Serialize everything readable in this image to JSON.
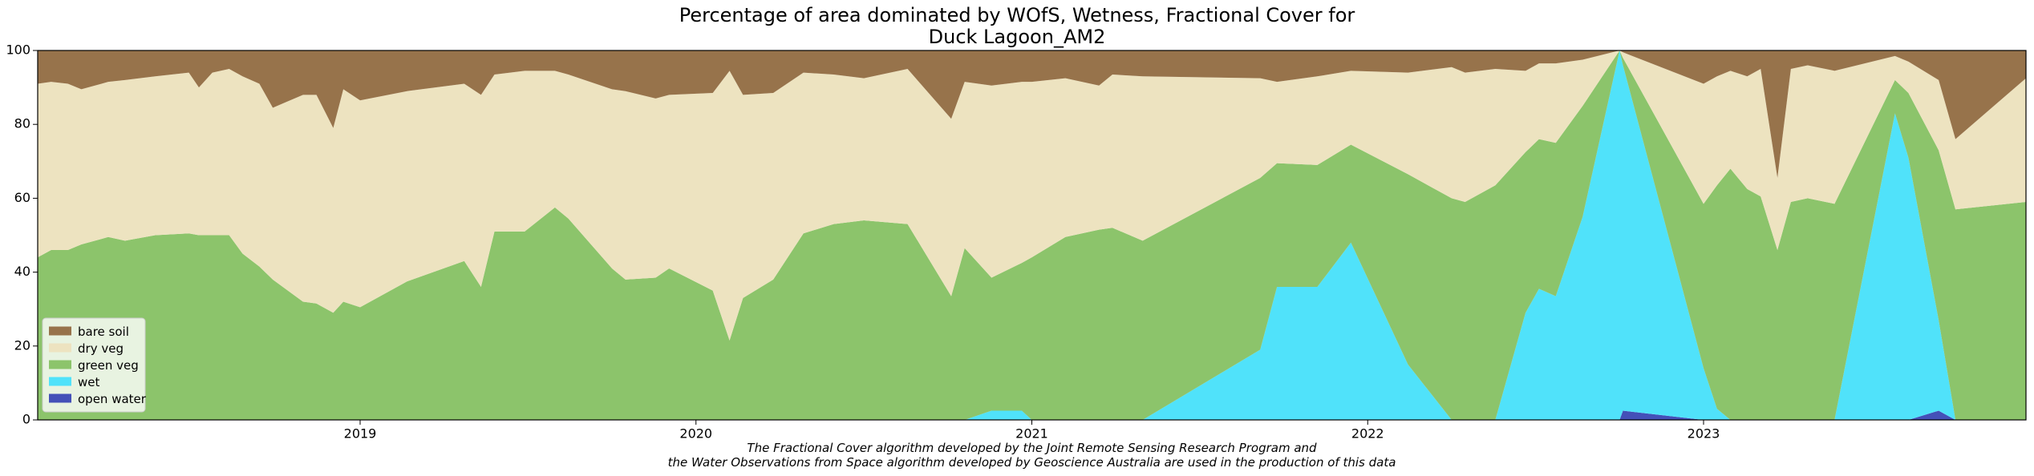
{
  "chart_data": {
    "type": "stacked_area",
    "title": "Percentage of area dominated by WOfS, Wetness, Fractional Cover for\nDuck Lagoon_AM2",
    "footnote": "The Fractional Cover algorithm developed by the Joint Remote Sensing Research Program and\nthe Water Observations from Space algorithm developed by Geoscience Australia are used in the production of this data",
    "x": [
      2018.04,
      2018.08,
      2018.13,
      2018.17,
      2018.25,
      2018.3,
      2018.39,
      2018.49,
      2018.52,
      2018.56,
      2018.61,
      2018.65,
      2018.7,
      2018.74,
      2018.83,
      2018.87,
      2018.92,
      2018.95,
      2019.0,
      2019.14,
      2019.31,
      2019.36,
      2019.4,
      2019.49,
      2019.58,
      2019.62,
      2019.75,
      2019.79,
      2019.88,
      2019.92,
      2020.05,
      2020.1,
      2020.14,
      2020.23,
      2020.32,
      2020.41,
      2020.5,
      2020.63,
      2020.76,
      2020.8,
      2020.88,
      2020.97,
      2021.0,
      2021.1,
      2021.2,
      2021.24,
      2021.33,
      2021.68,
      2021.73,
      2021.85,
      2021.95,
      2022.12,
      2022.25,
      2022.29,
      2022.38,
      2022.47,
      2022.51,
      2022.56,
      2022.64,
      2022.75,
      2022.76,
      2023.0,
      2023.04,
      2023.08,
      2023.13,
      2023.17,
      2023.22,
      2023.26,
      2023.31,
      2023.39,
      2023.57,
      2023.61,
      2023.7,
      2023.75,
      2023.96
    ],
    "series": [
      {
        "name": "open water",
        "color": "#4450b8",
        "values": [
          0,
          0,
          0,
          0,
          0,
          0,
          0,
          0,
          0,
          0,
          0,
          0,
          0,
          0,
          0,
          0,
          0,
          0,
          0,
          0,
          0,
          0,
          0,
          0,
          0,
          0,
          0,
          0,
          0,
          0,
          0,
          0,
          0,
          0,
          0,
          0,
          0,
          0,
          0,
          0,
          0,
          0,
          0,
          0,
          0,
          0,
          0,
          0,
          0,
          0,
          0,
          0,
          0,
          0,
          0,
          0,
          0,
          0,
          0,
          0,
          2.5,
          0,
          0,
          0,
          0,
          0,
          0,
          0,
          0,
          0,
          0,
          0,
          2.5,
          0,
          0
        ]
      },
      {
        "name": "wet",
        "color": "#50e2fa",
        "values": [
          0,
          0,
          0,
          0,
          0,
          0,
          0,
          0,
          0,
          0,
          0,
          0,
          0,
          0,
          0,
          0,
          0,
          0,
          0,
          0,
          0,
          0,
          0,
          0,
          0,
          0,
          0,
          0,
          0,
          0,
          0,
          0,
          0,
          0,
          0,
          0,
          0,
          0,
          0,
          0,
          2.5,
          2.5,
          0,
          0,
          0,
          0,
          0,
          19,
          36,
          36,
          48,
          15,
          0,
          0,
          0,
          29,
          35.5,
          33.5,
          55,
          100,
          93.5,
          14,
          3,
          0,
          0,
          0,
          0,
          0,
          0,
          0,
          83,
          71,
          24.5,
          0,
          0
        ]
      },
      {
        "name": "green veg",
        "color": "#8cc46b",
        "values": [
          44,
          46,
          46,
          47.5,
          49.5,
          48.5,
          50,
          50.5,
          50,
          50,
          50,
          45,
          41.5,
          38,
          32,
          31.5,
          29,
          32,
          30.5,
          37.5,
          43,
          36,
          51,
          51,
          57.5,
          54.5,
          41,
          38,
          38.5,
          41,
          35,
          21.5,
          33,
          38,
          50.5,
          53,
          54,
          53,
          33.5,
          46.5,
          36,
          40,
          44,
          49.5,
          51.5,
          52,
          48.5,
          46.5,
          33.5,
          33,
          26.5,
          51.5,
          60,
          59,
          63.5,
          43.5,
          40.5,
          41.5,
          30,
          0,
          2,
          44.5,
          60.5,
          68,
          62.5,
          60.5,
          46,
          59,
          60,
          58.5,
          9,
          17.5,
          46,
          57,
          59
        ]
      },
      {
        "name": "dry veg",
        "color": "#ede3c0",
        "values": [
          47,
          45.5,
          45,
          42,
          42,
          43.5,
          43,
          43.5,
          40,
          44,
          45,
          48,
          49.5,
          46.5,
          56,
          56.5,
          50,
          57.5,
          56,
          51.5,
          48,
          52,
          42.5,
          43.5,
          37,
          39,
          48.5,
          51,
          48.5,
          47,
          53.5,
          73,
          55,
          50.5,
          43.5,
          40.5,
          38.5,
          42,
          48,
          45,
          52,
          49,
          47.5,
          43,
          39,
          41.5,
          44.5,
          27,
          22,
          24,
          20,
          27.5,
          35.5,
          35,
          31.5,
          22,
          20.5,
          21.5,
          12.5,
          0,
          1.5,
          32.5,
          29.5,
          26.5,
          30.5,
          34.5,
          19.5,
          36,
          36,
          36,
          6.5,
          8.5,
          19,
          19,
          33.5
        ]
      },
      {
        "name": "bare soil",
        "color": "#97734b",
        "values": [
          9,
          8.5,
          9,
          10.5,
          8.5,
          8,
          7,
          6,
          10,
          6,
          5,
          7,
          9,
          15.5,
          12,
          12,
          21,
          10.5,
          13.5,
          11,
          9,
          12,
          6.5,
          5.5,
          5.5,
          6.5,
          10.5,
          11,
          13,
          12,
          11.5,
          5.5,
          12,
          11.5,
          6,
          6.5,
          7.5,
          5,
          18.5,
          8.5,
          9.5,
          8.5,
          8.5,
          7.5,
          9.5,
          6.5,
          7,
          7.5,
          8.5,
          7,
          5.5,
          6,
          4.5,
          6,
          5,
          5.5,
          3.5,
          3.5,
          2.5,
          0,
          0.5,
          9,
          7,
          5.5,
          7,
          5,
          34.5,
          5,
          4,
          5.5,
          1.5,
          3,
          8,
          24,
          7.5
        ]
      }
    ],
    "xlim": [
      2018.04,
      2023.96
    ],
    "xticks": [
      2019,
      2020,
      2021,
      2022,
      2023
    ],
    "ylim": [
      0,
      100
    ],
    "yticks": [
      0,
      20,
      40,
      60,
      80,
      100
    ],
    "grid": false,
    "legend": "lower left"
  }
}
